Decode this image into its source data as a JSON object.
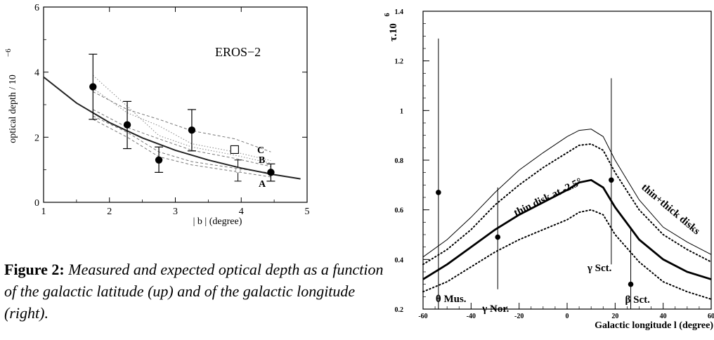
{
  "caption": {
    "label": "Figure 2:",
    "text": "Measured and expected optical depth as a function of the galactic latitude (up) and of the galactic longitude (right)."
  },
  "chart_data": [
    {
      "type": "scatter",
      "ylabel": "optical depth / 10",
      "ylabel_exp": "−6",
      "xlabel": "| b | (degree)",
      "xlim": [
        1,
        5
      ],
      "ylim": [
        0,
        6
      ],
      "xticks": [
        "1",
        "2",
        "3",
        "4",
        "5"
      ],
      "yticks": [
        "0",
        "2",
        "4",
        "6"
      ],
      "annotations": [
        "EROS−2",
        "A",
        "B",
        "C"
      ],
      "points": [
        {
          "x": 1.75,
          "y": 3.55,
          "yerr": [
            2.55,
            4.55
          ]
        },
        {
          "x": 2.27,
          "y": 2.38,
          "yerr": [
            1.65,
            3.1
          ]
        },
        {
          "x": 2.75,
          "y": 1.3,
          "yerr": [
            0.92,
            1.7
          ]
        },
        {
          "x": 3.25,
          "y": 2.22,
          "yerr": [
            1.58,
            2.85
          ]
        },
        {
          "x": 4.45,
          "y": 0.92,
          "yerr": [
            0.65,
            1.18
          ]
        }
      ],
      "extra_points": [
        {
          "marker": "square",
          "x": 3.9,
          "y": 1.62
        },
        {
          "marker": "circle-open",
          "x": 3.95,
          "y": 0.98,
          "yerr": [
            0.65,
            1.3
          ]
        }
      ],
      "model_curve": {
        "x": [
          1.0,
          1.5,
          2.0,
          2.5,
          3.0,
          3.5,
          4.0,
          4.5,
          4.9
        ],
        "y": [
          3.85,
          3.05,
          2.45,
          1.98,
          1.6,
          1.3,
          1.05,
          0.85,
          0.72
        ]
      },
      "dashed_curves": [
        {
          "x": [
            1.75,
            2.27,
            2.75,
            3.25,
            3.9,
            4.45
          ],
          "y": [
            3.4,
            2.85,
            2.55,
            2.2,
            1.95,
            1.55
          ]
        },
        {
          "x": [
            1.75,
            2.27,
            2.75,
            3.25,
            3.9,
            4.45
          ],
          "y": [
            2.85,
            2.3,
            1.95,
            1.6,
            1.35,
            1.1
          ]
        },
        {
          "x": [
            1.75,
            2.27,
            2.75,
            3.25,
            3.9,
            4.45
          ],
          "y": [
            2.65,
            2.15,
            1.55,
            1.25,
            1.05,
            0.9
          ]
        },
        {
          "x": [
            1.75,
            2.27,
            2.75,
            3.25,
            3.9,
            4.45
          ],
          "y": [
            2.55,
            2.0,
            1.4,
            1.15,
            0.95,
            0.78
          ]
        }
      ],
      "dotted_curves": [
        {
          "x": [
            1.75,
            2.27,
            2.75,
            3.25,
            3.9,
            4.45
          ],
          "y": [
            3.9,
            2.95,
            2.05,
            1.7,
            1.45,
            1.2
          ]
        },
        {
          "x": [
            1.75,
            2.27,
            2.75,
            3.25,
            3.9,
            4.45
          ],
          "y": [
            3.5,
            2.75,
            2.35,
            1.8,
            1.55,
            1.28
          ]
        }
      ]
    },
    {
      "type": "line",
      "ylabel": "τ.10",
      "ylabel_exp": "6",
      "xlabel": "Galactic longitude l (degree)",
      "xlim": [
        -60,
        60
      ],
      "ylim": [
        0.2,
        1.4
      ],
      "xticks": [
        "-60",
        "-40",
        "-20",
        "0",
        "20",
        "40",
        "60"
      ],
      "yticks": [
        "0.2",
        "0.4",
        "0.6",
        "0.8",
        "1",
        "1.2",
        "1.4"
      ],
      "curves": [
        {
          "style": "thin",
          "x": [
            -60,
            -50,
            -40,
            -30,
            -20,
            -10,
            0,
            5,
            10,
            15,
            20,
            30,
            40,
            50,
            60
          ],
          "y": [
            0.41,
            0.48,
            0.57,
            0.67,
            0.76,
            0.83,
            0.895,
            0.92,
            0.925,
            0.895,
            0.8,
            0.64,
            0.53,
            0.47,
            0.42
          ]
        },
        {
          "style": "dotted-upper",
          "x": [
            -60,
            -50,
            -40,
            -30,
            -20,
            -10,
            0,
            5,
            10,
            15,
            20,
            30,
            40,
            50,
            60
          ],
          "y": [
            0.38,
            0.44,
            0.52,
            0.62,
            0.7,
            0.77,
            0.83,
            0.86,
            0.865,
            0.84,
            0.75,
            0.6,
            0.5,
            0.44,
            0.39
          ]
        },
        {
          "style": "thick",
          "x": [
            -60,
            -50,
            -40,
            -30,
            -20,
            -10,
            0,
            5,
            10,
            15,
            20,
            30,
            40,
            50,
            60
          ],
          "y": [
            0.32,
            0.38,
            0.45,
            0.52,
            0.58,
            0.63,
            0.68,
            0.71,
            0.72,
            0.69,
            0.61,
            0.48,
            0.4,
            0.35,
            0.32
          ]
        },
        {
          "style": "dotted-lower",
          "x": [
            -60,
            -50,
            -40,
            -30,
            -20,
            -10,
            0,
            5,
            10,
            15,
            20,
            30,
            40,
            50,
            60
          ],
          "y": [
            0.27,
            0.31,
            0.37,
            0.43,
            0.48,
            0.52,
            0.56,
            0.59,
            0.6,
            0.58,
            0.5,
            0.39,
            0.31,
            0.27,
            0.24
          ]
        }
      ],
      "points": [
        {
          "x": -53.6,
          "y": 0.67,
          "yerr": [
            0.2,
            1.29
          ],
          "label": "θ Mus."
        },
        {
          "x": -28.9,
          "y": 0.49,
          "yerr": [
            0.28,
            0.69
          ],
          "label": "γ Nor."
        },
        {
          "x": 18.4,
          "y": 0.72,
          "yerr": [
            0.38,
            1.13
          ],
          "label": "γ Sct."
        },
        {
          "x": 26.5,
          "y": 0.3,
          "yerr": [
            0.2,
            0.53
          ],
          "label": "β Sct."
        }
      ],
      "annotations": [
        "thin disk at -2.5°",
        "thin+thick disks"
      ]
    }
  ]
}
